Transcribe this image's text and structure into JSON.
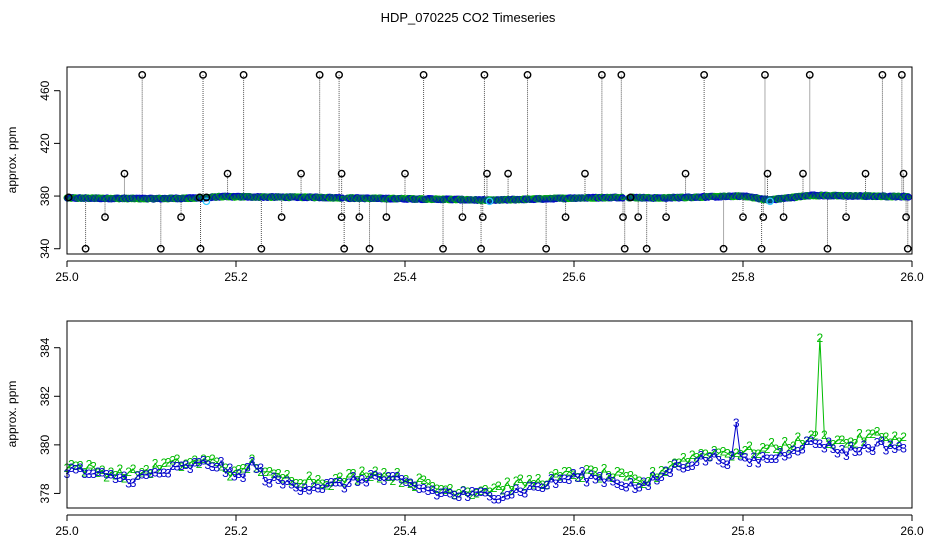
{
  "figure": {
    "title": "HDP_070225  CO2 Timeseries"
  },
  "colors": {
    "background": "#ffffff",
    "axis": "#000000",
    "black_series": "#000000",
    "blue_series": "#0000cc",
    "green_series": "#00bb00",
    "cyan_series": "#33ccff",
    "dotted_line": "#555555"
  },
  "chart_data": [
    {
      "type": "scatter",
      "title": "HDP_070225  CO2 Timeseries",
      "xlabel": "",
      "ylabel": "approx. ppm",
      "xlim": [
        25.0,
        26.0
      ],
      "ylim": [
        336,
        478
      ],
      "xticks": [
        "25.0",
        "25.2",
        "25.4",
        "25.6",
        "25.8",
        "26.0"
      ],
      "yticks": [
        "340",
        "380",
        "420",
        "460"
      ],
      "grid": false,
      "marker": "open circle",
      "gaps_x": [
        25.328,
        25.661
      ],
      "baseline": [
        [
          25.0,
          378.5
        ],
        [
          25.1,
          378.0
        ],
        [
          25.16,
          378.5
        ],
        [
          25.18,
          379.5
        ],
        [
          25.3,
          379.0
        ],
        [
          25.33,
          378.5
        ],
        [
          25.45,
          377.5
        ],
        [
          25.5,
          376.8
        ],
        [
          25.6,
          378.5
        ],
        [
          25.66,
          379.0
        ],
        [
          25.7,
          378.5
        ],
        [
          25.8,
          380.0
        ],
        [
          25.83,
          377.0
        ],
        [
          25.88,
          380.5
        ],
        [
          26.0,
          379.5
        ]
      ],
      "outliers": [
        {
          "x": 25.002,
          "y": 379
        },
        {
          "x": 25.022,
          "y": 340
        },
        {
          "x": 25.045,
          "y": 364
        },
        {
          "x": 25.068,
          "y": 397
        },
        {
          "x": 25.089,
          "y": 472
        },
        {
          "x": 25.111,
          "y": 340
        },
        {
          "x": 25.135,
          "y": 364
        },
        {
          "x": 25.157,
          "y": 379
        },
        {
          "x": 25.158,
          "y": 340
        },
        {
          "x": 25.161,
          "y": 472
        },
        {
          "x": 25.165,
          "y": 379
        },
        {
          "x": 25.19,
          "y": 397
        },
        {
          "x": 25.209,
          "y": 472
        },
        {
          "x": 25.23,
          "y": 340
        },
        {
          "x": 25.254,
          "y": 364
        },
        {
          "x": 25.277,
          "y": 397
        },
        {
          "x": 25.299,
          "y": 472
        },
        {
          "x": 25.322,
          "y": 472
        },
        {
          "x": 25.325,
          "y": 397
        },
        {
          "x": 25.325,
          "y": 364
        },
        {
          "x": 25.328,
          "y": 340
        },
        {
          "x": 25.346,
          "y": 364
        },
        {
          "x": 25.358,
          "y": 340
        },
        {
          "x": 25.378,
          "y": 364
        },
        {
          "x": 25.4,
          "y": 397
        },
        {
          "x": 25.422,
          "y": 472
        },
        {
          "x": 25.445,
          "y": 340
        },
        {
          "x": 25.468,
          "y": 364
        },
        {
          "x": 25.49,
          "y": 340
        },
        {
          "x": 25.492,
          "y": 364
        },
        {
          "x": 25.494,
          "y": 472
        },
        {
          "x": 25.497,
          "y": 397
        },
        {
          "x": 25.522,
          "y": 397
        },
        {
          "x": 25.545,
          "y": 472
        },
        {
          "x": 25.567,
          "y": 340
        },
        {
          "x": 25.59,
          "y": 364
        },
        {
          "x": 25.613,
          "y": 397
        },
        {
          "x": 25.633,
          "y": 472
        },
        {
          "x": 25.656,
          "y": 472
        },
        {
          "x": 25.658,
          "y": 364
        },
        {
          "x": 25.66,
          "y": 340
        },
        {
          "x": 25.667,
          "y": 379
        },
        {
          "x": 25.676,
          "y": 364
        },
        {
          "x": 25.686,
          "y": 340
        },
        {
          "x": 25.709,
          "y": 364
        },
        {
          "x": 25.732,
          "y": 397
        },
        {
          "x": 25.754,
          "y": 472
        },
        {
          "x": 25.777,
          "y": 340
        },
        {
          "x": 25.8,
          "y": 364
        },
        {
          "x": 25.822,
          "y": 340
        },
        {
          "x": 25.824,
          "y": 364
        },
        {
          "x": 25.826,
          "y": 472
        },
        {
          "x": 25.829,
          "y": 397
        },
        {
          "x": 25.848,
          "y": 364
        },
        {
          "x": 25.871,
          "y": 397
        },
        {
          "x": 25.879,
          "y": 472
        },
        {
          "x": 25.9,
          "y": 340
        },
        {
          "x": 25.922,
          "y": 364
        },
        {
          "x": 25.945,
          "y": 397
        },
        {
          "x": 25.965,
          "y": 472
        },
        {
          "x": 25.988,
          "y": 472
        },
        {
          "x": 25.99,
          "y": 397
        },
        {
          "x": 25.993,
          "y": 364
        },
        {
          "x": 25.995,
          "y": 340
        }
      ],
      "cyan_points": [
        {
          "x": 25.165,
          "y": 376
        },
        {
          "x": 25.5,
          "y": 376
        },
        {
          "x": 25.832,
          "y": 376
        }
      ]
    },
    {
      "type": "line",
      "title": "",
      "xlabel": "",
      "ylabel": "approx. ppm",
      "xlim": [
        25.0,
        26.0
      ],
      "ylim": [
        377.4,
        385.1
      ],
      "xticks": [
        "25.0",
        "25.2",
        "25.4",
        "25.6",
        "25.8",
        "26.0"
      ],
      "yticks": [
        "378",
        "380",
        "382",
        "384"
      ],
      "grid": false,
      "series": [
        {
          "marker_symbol": "2",
          "color": "green",
          "anchors": [
            [
              25.0,
              379.2
            ],
            [
              25.04,
              378.9
            ],
            [
              25.08,
              378.8
            ],
            [
              25.12,
              379.2
            ],
            [
              25.16,
              379.3
            ],
            [
              25.18,
              379.3
            ],
            [
              25.2,
              378.7
            ],
            [
              25.22,
              379.3
            ],
            [
              25.24,
              378.7
            ],
            [
              25.28,
              378.6
            ],
            [
              25.32,
              378.5
            ],
            [
              25.36,
              378.9
            ],
            [
              25.4,
              378.6
            ],
            [
              25.44,
              378.2
            ],
            [
              25.48,
              378.1
            ],
            [
              25.52,
              378.3
            ],
            [
              25.56,
              378.5
            ],
            [
              25.6,
              378.8
            ],
            [
              25.64,
              378.8
            ],
            [
              25.68,
              378.4
            ],
            [
              25.72,
              379.3
            ],
            [
              25.76,
              379.7
            ],
            [
              25.8,
              379.7
            ],
            [
              25.84,
              379.9
            ],
            [
              25.86,
              380.1
            ],
            [
              25.89,
              380.3
            ],
            [
              25.92,
              380.1
            ],
            [
              25.96,
              380.4
            ],
            [
              25.99,
              380.2
            ]
          ],
          "spike": {
            "x": 25.89,
            "y": 384.4
          }
        },
        {
          "marker_symbol": "3",
          "color": "blue",
          "anchors": [
            [
              25.0,
              379.0
            ],
            [
              25.04,
              378.7
            ],
            [
              25.08,
              378.6
            ],
            [
              25.12,
              378.9
            ],
            [
              25.16,
              379.2
            ],
            [
              25.18,
              379.2
            ],
            [
              25.2,
              378.6
            ],
            [
              25.22,
              379.2
            ],
            [
              25.24,
              378.5
            ],
            [
              25.28,
              378.3
            ],
            [
              25.32,
              378.3
            ],
            [
              25.36,
              378.7
            ],
            [
              25.4,
              378.4
            ],
            [
              25.44,
              378.0
            ],
            [
              25.48,
              377.9
            ],
            [
              25.52,
              378.0
            ],
            [
              25.56,
              378.3
            ],
            [
              25.6,
              378.7
            ],
            [
              25.64,
              378.6
            ],
            [
              25.68,
              378.2
            ],
            [
              25.72,
              379.1
            ],
            [
              25.76,
              379.5
            ],
            [
              25.8,
              379.3
            ],
            [
              25.84,
              379.5
            ],
            [
              25.86,
              379.9
            ],
            [
              25.89,
              380.1
            ],
            [
              25.92,
              379.7
            ],
            [
              25.96,
              380.0
            ],
            [
              25.99,
              379.9
            ]
          ],
          "spike": {
            "x": 25.79,
            "y": 380.9
          }
        }
      ]
    }
  ]
}
